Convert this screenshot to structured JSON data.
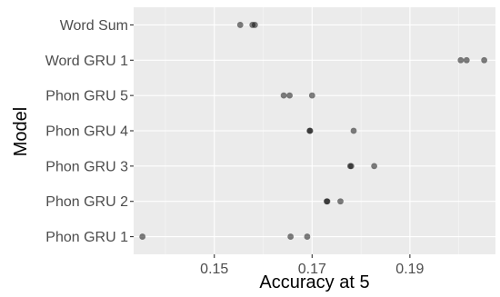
{
  "chart_data": {
    "type": "scatter",
    "title": "",
    "xlabel": "Accuracy at 5",
    "ylabel": "Model",
    "xlim": [
      0.1335,
      0.2075
    ],
    "x_ticks": [
      0.15,
      0.17,
      0.19
    ],
    "x_tick_labels": [
      "0.15",
      "0.17",
      "0.19"
    ],
    "categories": [
      "Word Sum",
      "Word GRU 1",
      "Phon GRU 5",
      "Phon GRU 4",
      "Phon GRU 3",
      "Phon GRU 2",
      "Phon GRU 1"
    ],
    "grid": true,
    "legend": "none",
    "point_color": "#000000",
    "point_alpha": 0.5,
    "panel_color": "#ebebeb",
    "points": [
      {
        "model": "Word Sum",
        "values": [
          0.1553,
          0.1578,
          0.1583
        ]
      },
      {
        "model": "Word GRU 1",
        "values": [
          0.2004,
          0.2016,
          0.2052
        ]
      },
      {
        "model": "Phon GRU 5",
        "values": [
          0.1642,
          0.1654,
          0.17
        ]
      },
      {
        "model": "Phon GRU 4",
        "values": [
          0.1695,
          0.1696,
          0.1785
        ]
      },
      {
        "model": "Phon GRU 3",
        "values": [
          0.1778,
          0.178,
          0.1827
        ]
      },
      {
        "model": "Phon GRU 2",
        "values": [
          0.173,
          0.1731,
          0.1758
        ]
      },
      {
        "model": "Phon GRU 1",
        "values": [
          0.1353,
          0.1656,
          0.169
        ]
      }
    ]
  }
}
